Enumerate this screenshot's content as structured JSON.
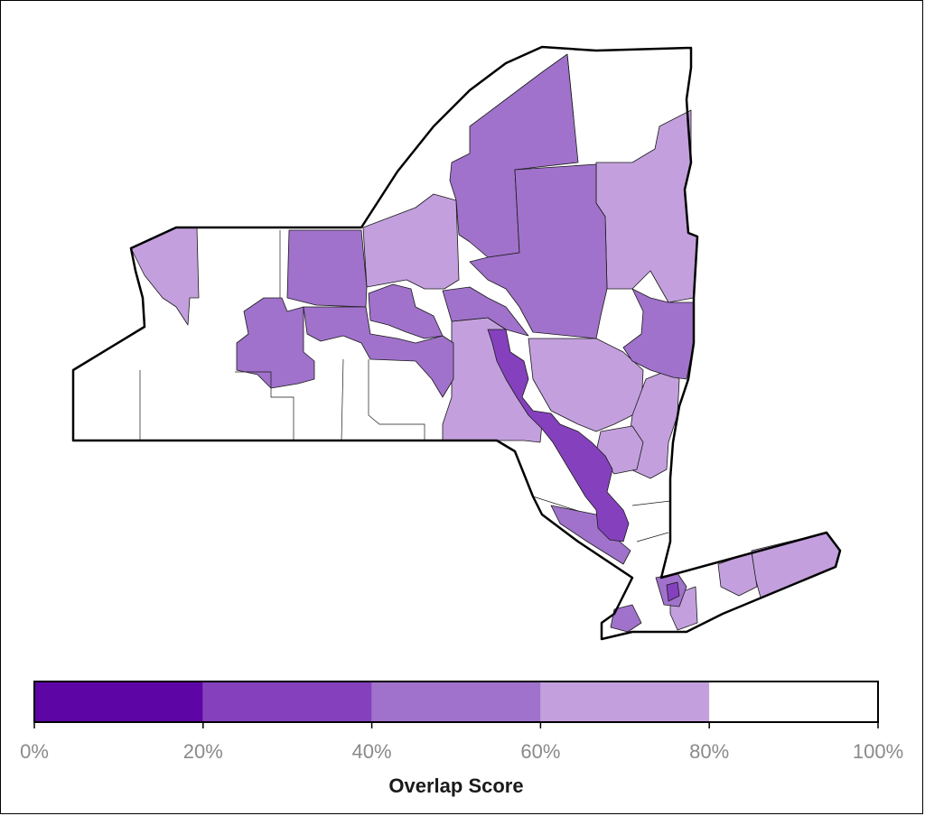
{
  "legend": {
    "title": "Overlap Score",
    "bins": [
      {
        "label": "0%",
        "color": "#5d06a5"
      },
      {
        "label": "20%",
        "color": "#8541bd"
      },
      {
        "label": "40%",
        "color": "#a072cb"
      },
      {
        "label": "60%",
        "color": "#c3a0dd"
      },
      {
        "label": "80%",
        "color": "#ffffff"
      }
    ],
    "end_label": "100%"
  },
  "map": {
    "region": "New York State",
    "fill_colors": {
      "bin_20_40": "#8541bd",
      "bin_40_60": "#a072cb",
      "bin_60_80": "#c3a0dd",
      "bin_80_100": "#ffffff"
    }
  }
}
